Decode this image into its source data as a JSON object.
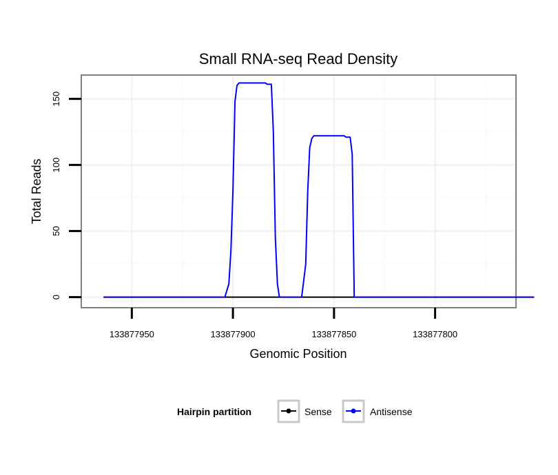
{
  "chart_data": {
    "type": "line",
    "title": "Small RNA-seq Read Density",
    "xlabel": "Genomic Position",
    "ylabel": "Total Reads",
    "x_reversed": true,
    "xlim": [
      133877975,
      133877760
    ],
    "ylim": [
      -8,
      168
    ],
    "x_ticks": [
      133877950,
      133877900,
      133877850,
      133877800
    ],
    "x_tick_labels": [
      "133877950",
      "133877900",
      "133877850",
      "133877800"
    ],
    "y_ticks": [
      0,
      50,
      100,
      150
    ],
    "y_tick_labels": [
      "0",
      "50",
      "100",
      "150"
    ],
    "grid": true,
    "legend": {
      "title": "Hairpin partition",
      "position": "bottom",
      "entries": [
        {
          "name": "Sense",
          "color": "#000000"
        },
        {
          "name": "Antisense",
          "color": "#0000ff"
        }
      ]
    },
    "series": [
      {
        "name": "Sense",
        "color": "#000000",
        "x": [
          133877964,
          133877751
        ],
        "y": [
          0,
          0
        ]
      },
      {
        "name": "Antisense",
        "color": "#0000ff",
        "x": [
          133877964,
          133877904,
          133877902,
          133877901,
          133877900,
          133877899,
          133877898,
          133877897,
          133877896,
          133877884,
          133877883,
          133877881,
          133877880,
          133877879,
          133877878,
          133877877,
          133877876,
          133877866,
          133877864,
          133877863,
          133877862,
          133877861,
          133877860,
          133877859,
          133877858,
          133877857,
          133877856,
          133877845,
          133877844,
          133877842,
          133877841,
          133877840,
          133877751
        ],
        "y": [
          0,
          0,
          10,
          35,
          80,
          148,
          160,
          162,
          162,
          162,
          161,
          161,
          125,
          45,
          10,
          0,
          0,
          0,
          25,
          80,
          113,
          120,
          122,
          122,
          122,
          122,
          122,
          122,
          121,
          121,
          108,
          0,
          0
        ]
      }
    ]
  }
}
